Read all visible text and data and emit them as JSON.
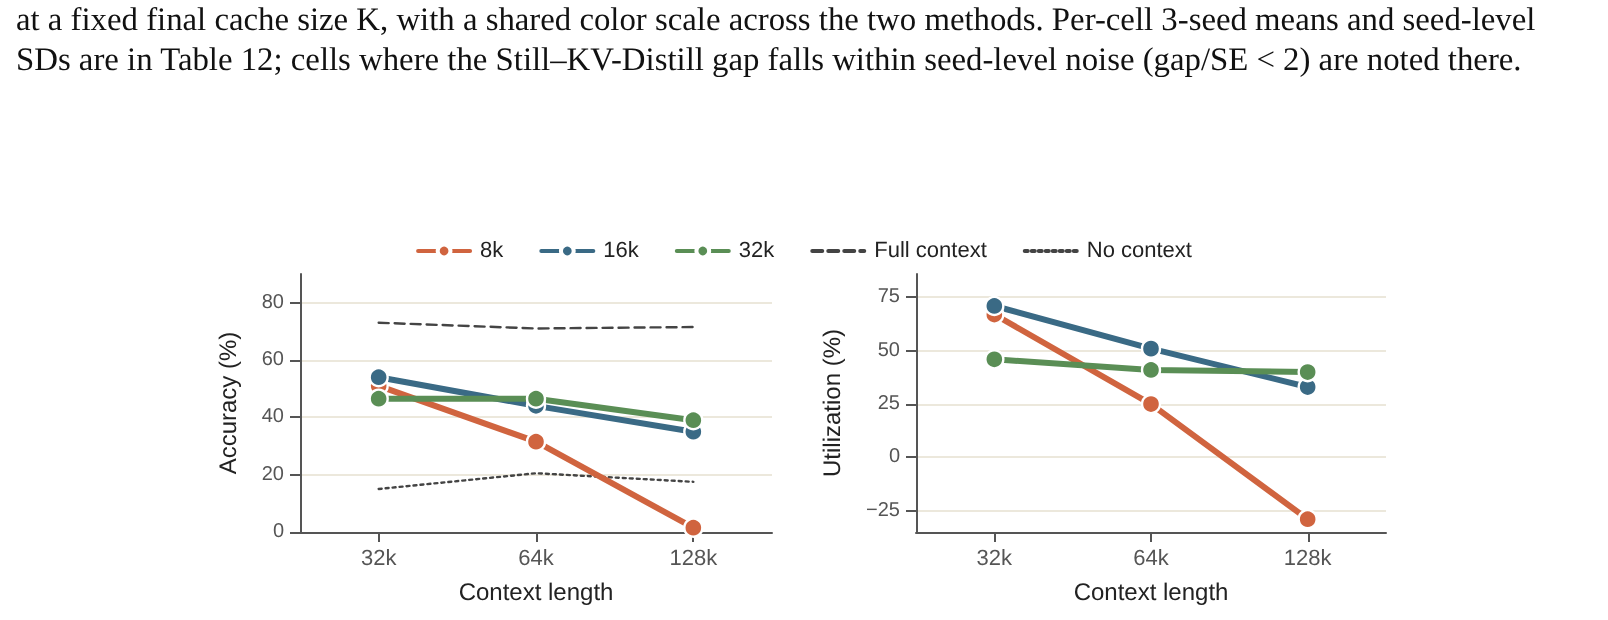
{
  "chart_data": [
    {
      "type": "line",
      "annotations": [
        "at a fixed final cache size K, with a shared color scale across the two methods. Per-cell 3-seed means and seed-level SDs are in Table 12; cells where the Still–KV-Distill gap falls within seed-level noise (gap/SE < 2) are noted there."
      ],
      "xlabel": "Context length",
      "ylabel": "Accuracy (%)",
      "categories": [
        "32k",
        "64k",
        "128k"
      ],
      "ylim": [
        0,
        90
      ],
      "yticks": [
        0,
        20,
        40,
        60,
        80
      ],
      "grid": "y",
      "legend": "top",
      "marker": "circle",
      "series": [
        {
          "name": "8k",
          "color": "#d0643f",
          "values": [
            51,
            31.5,
            1.5
          ]
        },
        {
          "name": "16k",
          "color": "#3a6a85",
          "values": [
            54,
            44,
            35
          ]
        },
        {
          "name": "32k",
          "color": "#5a8e55",
          "values": [
            46.5,
            46.5,
            39
          ]
        },
        {
          "name": "Full context",
          "color": "#444444",
          "values": [
            73,
            71,
            71.5
          ],
          "line_style": "dashed",
          "marker": "none"
        },
        {
          "name": "No context",
          "color": "#444444",
          "values": [
            15,
            20.5,
            17.5
          ],
          "line_style": "dotted",
          "marker": "none"
        }
      ]
    },
    {
      "type": "line",
      "xlabel": "Context length",
      "ylabel": "Utilization (%)",
      "categories": [
        "32k",
        "64k",
        "128k"
      ],
      "ylim": [
        -35,
        86
      ],
      "yticks": [
        -25,
        0,
        25,
        50,
        75
      ],
      "grid": "y",
      "legend": false,
      "marker": "circle",
      "series": [
        {
          "color": "#d0643f",
          "values": [
            67,
            25,
            -29
          ]
        },
        {
          "color": "#3a6a85",
          "values": [
            71,
            51,
            33
          ]
        },
        {
          "color": "#5a8e55",
          "values": [
            46,
            41,
            40
          ]
        }
      ]
    }
  ]
}
